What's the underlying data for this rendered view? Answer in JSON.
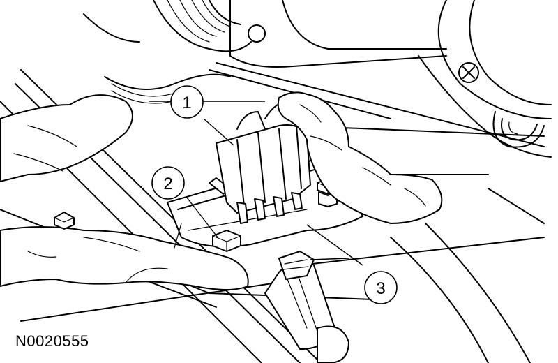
{
  "figure": {
    "id_label": "N0020555",
    "callouts": [
      {
        "number": "1",
        "target": "electrical-connector"
      },
      {
        "number": "2",
        "target": "nut"
      },
      {
        "number": "3",
        "target": "bracket"
      }
    ]
  }
}
